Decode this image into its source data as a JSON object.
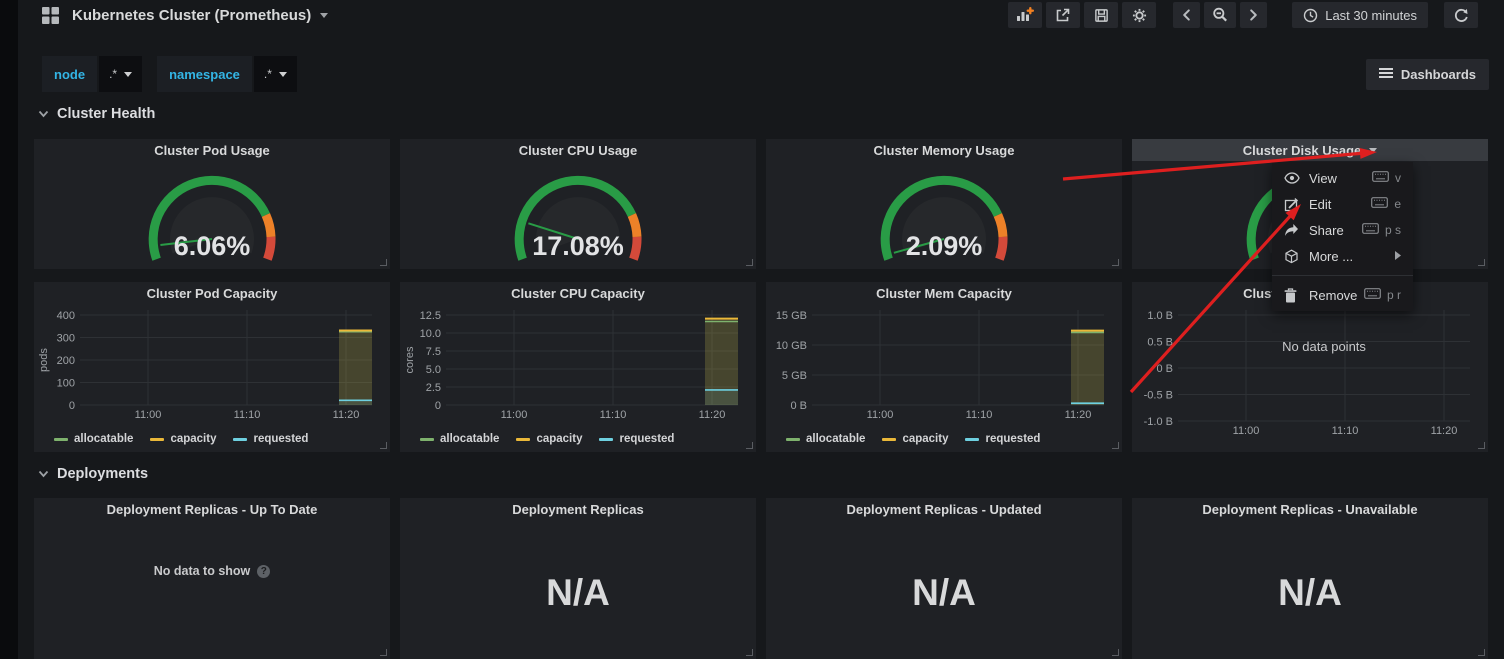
{
  "navbar": {
    "logo_icon": "grid-logo",
    "title": "Kubernetes Cluster (Prometheus)",
    "title_caret_icon": "chevron-down",
    "buttons": [
      {
        "name": "add-panel",
        "icon": "bars-plus"
      },
      {
        "name": "share-dashboard",
        "icon": "export"
      },
      {
        "name": "save-dashboard",
        "icon": "save"
      },
      {
        "name": "settings",
        "icon": "gear"
      },
      {
        "name": "time-back",
        "icon": "chevron-left"
      },
      {
        "name": "zoom-out",
        "icon": "magnifier-minus"
      },
      {
        "name": "time-forward",
        "icon": "chevron-right"
      },
      {
        "name": "time-range",
        "icon": "clock",
        "label": "Last 30 minutes"
      },
      {
        "name": "refresh",
        "icon": "refresh"
      }
    ]
  },
  "variables": [
    {
      "name": "node",
      "label": "node",
      "value": ".*"
    },
    {
      "name": "namespace",
      "label": "namespace",
      "value": ".*"
    }
  ],
  "dashboards_button": {
    "icon": "hamburger",
    "label": "Dashboards"
  },
  "sections": [
    {
      "title": "Cluster Health"
    },
    {
      "title": "Deployments"
    }
  ],
  "cluster_health": {
    "gauges": [
      {
        "title": "Cluster Pod Usage",
        "value_text": "6.06%",
        "value_pct": 6.06
      },
      {
        "title": "Cluster CPU Usage",
        "value_text": "17.08%",
        "value_pct": 17.08
      },
      {
        "title": "Cluster Memory Usage",
        "value_text": "2.09%",
        "value_pct": 2.09
      },
      {
        "title": "Cluster Disk Usage",
        "value_text": "",
        "value_pct": null,
        "menu_open": true
      }
    ],
    "gauge_colors": {
      "ok": "#299c46",
      "warn": "#ed8128",
      "crit": "#d44a3a"
    },
    "thresholds_pct": {
      "warn": 80,
      "crit": 90
    }
  },
  "chart_data": [
    {
      "type": "area",
      "title": "Cluster Pod Capacity",
      "ylabel": "pods",
      "ymin": 0,
      "ymax": 400,
      "ytick_values": [
        0,
        100,
        200,
        300,
        400
      ],
      "ytick_labels": [
        "0",
        "100",
        "200",
        "300",
        "400"
      ],
      "xtick_labels": [
        "11:00",
        "11:10",
        "11:20"
      ],
      "legend": [
        "allocatable",
        "capacity",
        "requested"
      ],
      "series": [
        {
          "name": "allocatable",
          "value": 326
        },
        {
          "name": "capacity",
          "value": 331
        },
        {
          "name": "requested",
          "value": 21
        }
      ],
      "note": "flat series visible only near 11:20 to right edge"
    },
    {
      "type": "area",
      "title": "Cluster CPU Capacity",
      "ylabel": "cores",
      "ymin": 0,
      "ymax": 12.5,
      "ytick_values": [
        0,
        2.5,
        5,
        7.5,
        10,
        12.5
      ],
      "ytick_labels": [
        "0",
        "2.5",
        "5.0",
        "7.5",
        "10.0",
        "12.5"
      ],
      "xtick_labels": [
        "11:00",
        "11:10",
        "11:20"
      ],
      "legend": [
        "allocatable",
        "capacity",
        "requested"
      ],
      "series": [
        {
          "name": "allocatable",
          "value": 11.6
        },
        {
          "name": "capacity",
          "value": 12
        },
        {
          "name": "requested",
          "value": 2.1
        }
      ],
      "note": "flat series visible only near 11:20 to right edge"
    },
    {
      "type": "area",
      "title": "Cluster Mem Capacity",
      "ylabel": "",
      "ymin": 0,
      "ymax": 15,
      "ytick_values": [
        0,
        5,
        10,
        15
      ],
      "ytick_labels": [
        "0 B",
        "5 GB",
        "10 GB",
        "15 GB"
      ],
      "xtick_labels": [
        "11:00",
        "11:10",
        "11:20"
      ],
      "legend": [
        "allocatable",
        "capacity",
        "requested"
      ],
      "series": [
        {
          "name": "allocatable",
          "value": 12.1
        },
        {
          "name": "capacity",
          "value": 12.4
        },
        {
          "name": "requested",
          "value": 0.3
        }
      ],
      "unit": "GB",
      "note": "flat series visible only near 11:20 to right edge"
    },
    {
      "type": "area",
      "title": "Cluster Disk Capacity",
      "no_data_text": "No data points",
      "ylabel": "",
      "ymin": -1,
      "ymax": 1,
      "ytick_values": [
        -1,
        -0.5,
        0,
        0.5,
        1
      ],
      "ytick_labels": [
        "-1.0 B",
        "-0.5 B",
        "0 B",
        "0.5 B",
        "1.0 B"
      ],
      "xtick_labels": [
        "11:00",
        "11:10",
        "11:20"
      ],
      "legend": [],
      "series": []
    }
  ],
  "deployments": [
    {
      "title": "Deployment Replicas - Up To Date",
      "no_data_text": "No data to show",
      "help_icon": "question-circle"
    },
    {
      "title": "Deployment Replicas",
      "value": "N/A"
    },
    {
      "title": "Deployment Replicas - Updated",
      "value": "N/A"
    },
    {
      "title": "Deployment Replicas - Unavailable",
      "value": "N/A"
    }
  ],
  "context_menu": {
    "for_panel": "Cluster Disk Usage",
    "items": [
      {
        "icon": "eye",
        "label": "View",
        "shortcut": "v"
      },
      {
        "icon": "edit",
        "label": "Edit",
        "shortcut": "e"
      },
      {
        "icon": "share",
        "label": "Share",
        "shortcut": "p s"
      },
      {
        "icon": "cube",
        "label": "More ...",
        "submenu": true
      },
      {
        "icon": "trash",
        "label": "Remove",
        "shortcut": "p r",
        "divider_before": true
      }
    ]
  },
  "annotations": {
    "arrow_color": "#de1f1f",
    "arrows": [
      {
        "from": [
          1063,
          179
        ],
        "to": [
          1377,
          152
        ],
        "points_at": "cluster-disk-usage-title-caret"
      },
      {
        "from": [
          1131,
          392
        ],
        "to": [
          1301,
          204
        ],
        "points_at": "menu-item-edit"
      }
    ]
  },
  "colors": {
    "page_bg": "#16181b",
    "left_strip": "#0a0b0d",
    "panel_bg": "#1f2125",
    "panel_title": "#d8d9da",
    "accent_cyan": "#33b5e5",
    "grid_line": "#2e3135",
    "tick_text": "#9fa3a7",
    "menu_bg": "#19191c",
    "active_header_bg": "#383b40",
    "series": {
      "allocatable": "#7eb26d",
      "capacity": "#eab839",
      "requested": "#6ed0e0"
    }
  }
}
